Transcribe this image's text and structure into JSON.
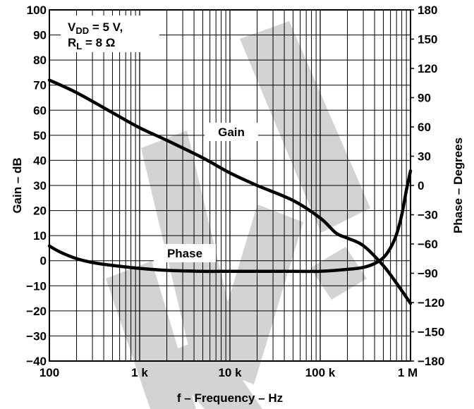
{
  "chart_data": {
    "type": "line",
    "xlabel": "f – Frequency – Hz",
    "ylabel": "Gain – dB",
    "y2label": "Phase – Degrees",
    "x_scale": "log",
    "xlim": [
      100,
      1000000
    ],
    "ylim": [
      -40,
      100
    ],
    "y2lim": [
      -180,
      180
    ],
    "x_ticks": [
      {
        "value": 100,
        "label": "100"
      },
      {
        "value": 1000,
        "label": "1 k"
      },
      {
        "value": 10000,
        "label": "10 k"
      },
      {
        "value": 100000,
        "label": "100 k"
      },
      {
        "value": 1000000,
        "label": "1 M"
      }
    ],
    "y_ticks": [
      100,
      90,
      80,
      70,
      60,
      50,
      40,
      30,
      20,
      10,
      0,
      -10,
      -20,
      -30,
      -40
    ],
    "y_tick_labels": [
      "100",
      "90",
      "80",
      "70",
      "60",
      "50",
      "40",
      "30",
      "20",
      "10",
      "0",
      "−10",
      "−20",
      "−30",
      "−40"
    ],
    "y2_ticks": [
      180,
      150,
      120,
      90,
      60,
      30,
      0,
      -30,
      -60,
      -90,
      -120,
      -150,
      -180
    ],
    "y2_tick_labels": [
      "180",
      "150",
      "120",
      "90",
      "60",
      "30",
      "0",
      "−30",
      "−60",
      "−90",
      "−120",
      "−150",
      "−180"
    ],
    "grid": true,
    "conditions": {
      "line1_prefix": "V",
      "line1_sub": "DD",
      "line1_suffix": " = 5 V,",
      "line2_prefix": "R",
      "line2_sub": "L",
      "line2_suffix": " = 8 Ω"
    },
    "series": [
      {
        "name": "Gain",
        "axis": "left",
        "x": [
          100,
          200,
          500,
          1000,
          2000,
          5000,
          10000,
          20000,
          50000,
          100000,
          150000,
          200000,
          300000,
          500000,
          700000,
          1000000
        ],
        "y": [
          72,
          67,
          59,
          53,
          48,
          41,
          35,
          30,
          24,
          17,
          11,
          9,
          6,
          -2,
          -9,
          -17
        ]
      },
      {
        "name": "Phase",
        "axis": "right",
        "x": [
          100,
          130,
          200,
          300,
          500,
          1000,
          2000,
          5000,
          10000,
          20000,
          50000,
          100000,
          200000,
          300000,
          400000,
          500000,
          600000,
          700000,
          800000,
          900000,
          1000000
        ],
        "y": [
          -62,
          -68,
          -75,
          -79,
          -82,
          -85,
          -87,
          -88,
          -88,
          -88,
          -88,
          -88,
          -86,
          -84,
          -80,
          -74,
          -64,
          -50,
          -30,
          -5,
          15
        ]
      }
    ],
    "labels": {
      "gain": "Gain",
      "phase": "Phase"
    },
    "watermark_color": "#d3d3d3",
    "line_color": "#000000"
  }
}
